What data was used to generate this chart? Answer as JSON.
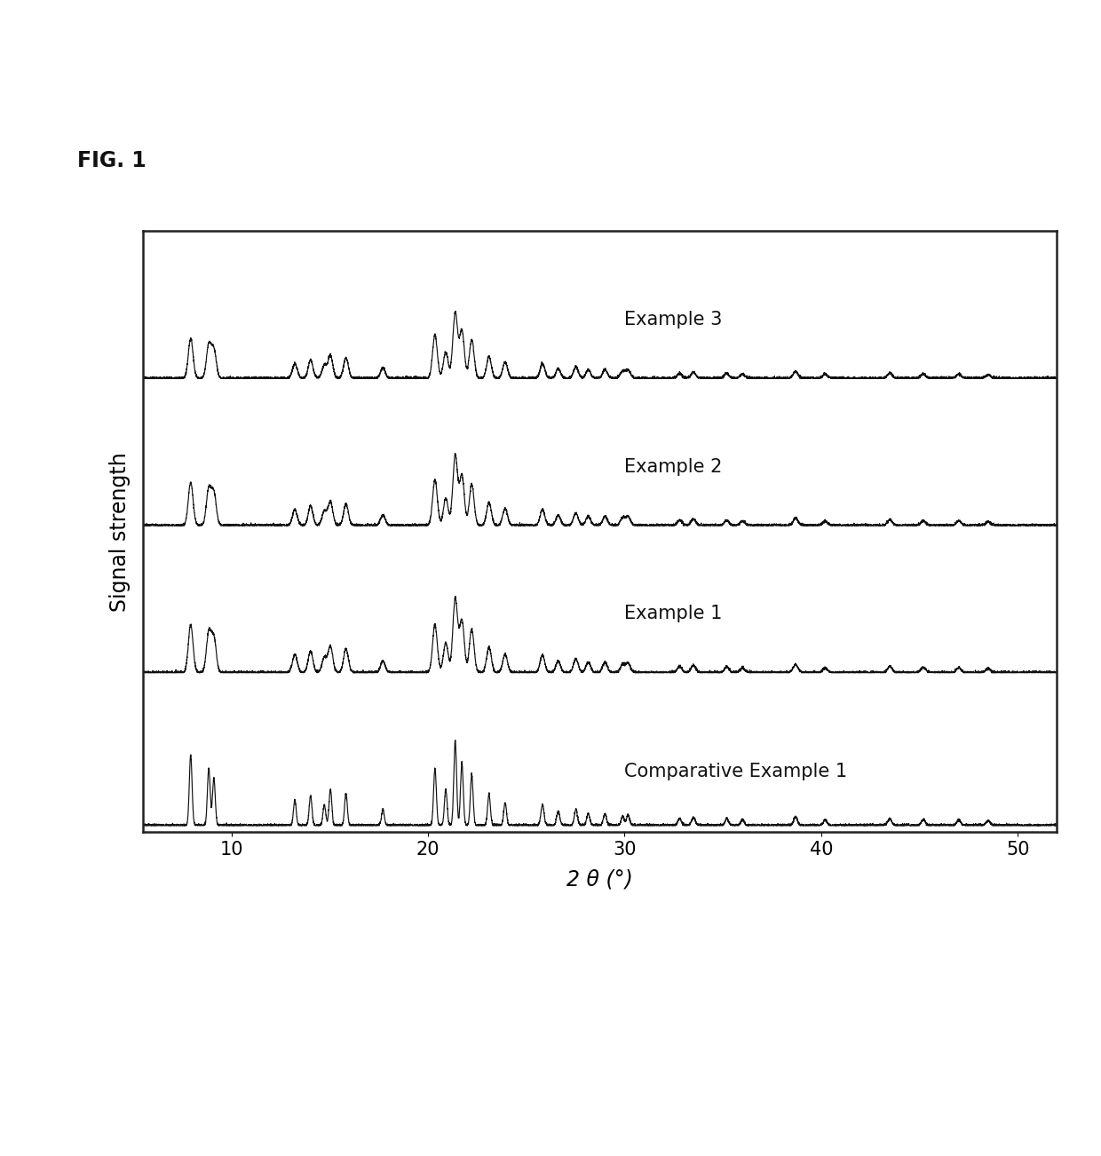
{
  "title": "FIG. 1",
  "xlabel": "2 θ (°)",
  "ylabel": "Signal strength",
  "xlim": [
    5.5,
    52
  ],
  "xticks": [
    10,
    20,
    30,
    40,
    50
  ],
  "series_labels": [
    "Comparative Example 1",
    "Example 1",
    "Example 2",
    "Example 3"
  ],
  "background_color": "#ffffff",
  "line_color": "#111111",
  "label_fontsize": 15,
  "tick_fontsize": 15,
  "axis_label_fontsize": 17,
  "title_fontsize": 17
}
